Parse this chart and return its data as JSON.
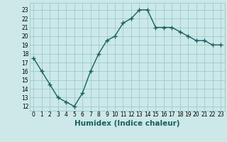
{
  "x": [
    0,
    1,
    2,
    3,
    4,
    5,
    6,
    7,
    8,
    9,
    10,
    11,
    12,
    13,
    14,
    15,
    16,
    17,
    18,
    19,
    20,
    21,
    22,
    23
  ],
  "y": [
    17.5,
    16.0,
    14.5,
    13.0,
    12.5,
    12.0,
    13.5,
    16.0,
    18.0,
    19.5,
    20.0,
    21.5,
    22.0,
    23.0,
    23.0,
    21.0,
    21.0,
    21.0,
    20.5,
    20.0,
    19.5,
    19.5,
    19.0,
    19.0
  ],
  "xlim": [
    -0.5,
    23.5
  ],
  "ylim": [
    11.5,
    23.8
  ],
  "yticks": [
    12,
    13,
    14,
    15,
    16,
    17,
    18,
    19,
    20,
    21,
    22,
    23
  ],
  "xticks": [
    0,
    1,
    2,
    3,
    4,
    5,
    6,
    7,
    8,
    9,
    10,
    11,
    12,
    13,
    14,
    15,
    16,
    17,
    18,
    19,
    20,
    21,
    22,
    23
  ],
  "xlabel": "Humidex (Indice chaleur)",
  "line_color": "#1a5f5f",
  "marker": "+",
  "marker_size": 4,
  "marker_linewidth": 1.0,
  "linewidth": 1.0,
  "background_color": "#cce8e8",
  "grid_color": "#99cccc",
  "tick_fontsize": 5.5,
  "xlabel_fontsize": 7.5,
  "xlabel_color": "#1a5f5f"
}
